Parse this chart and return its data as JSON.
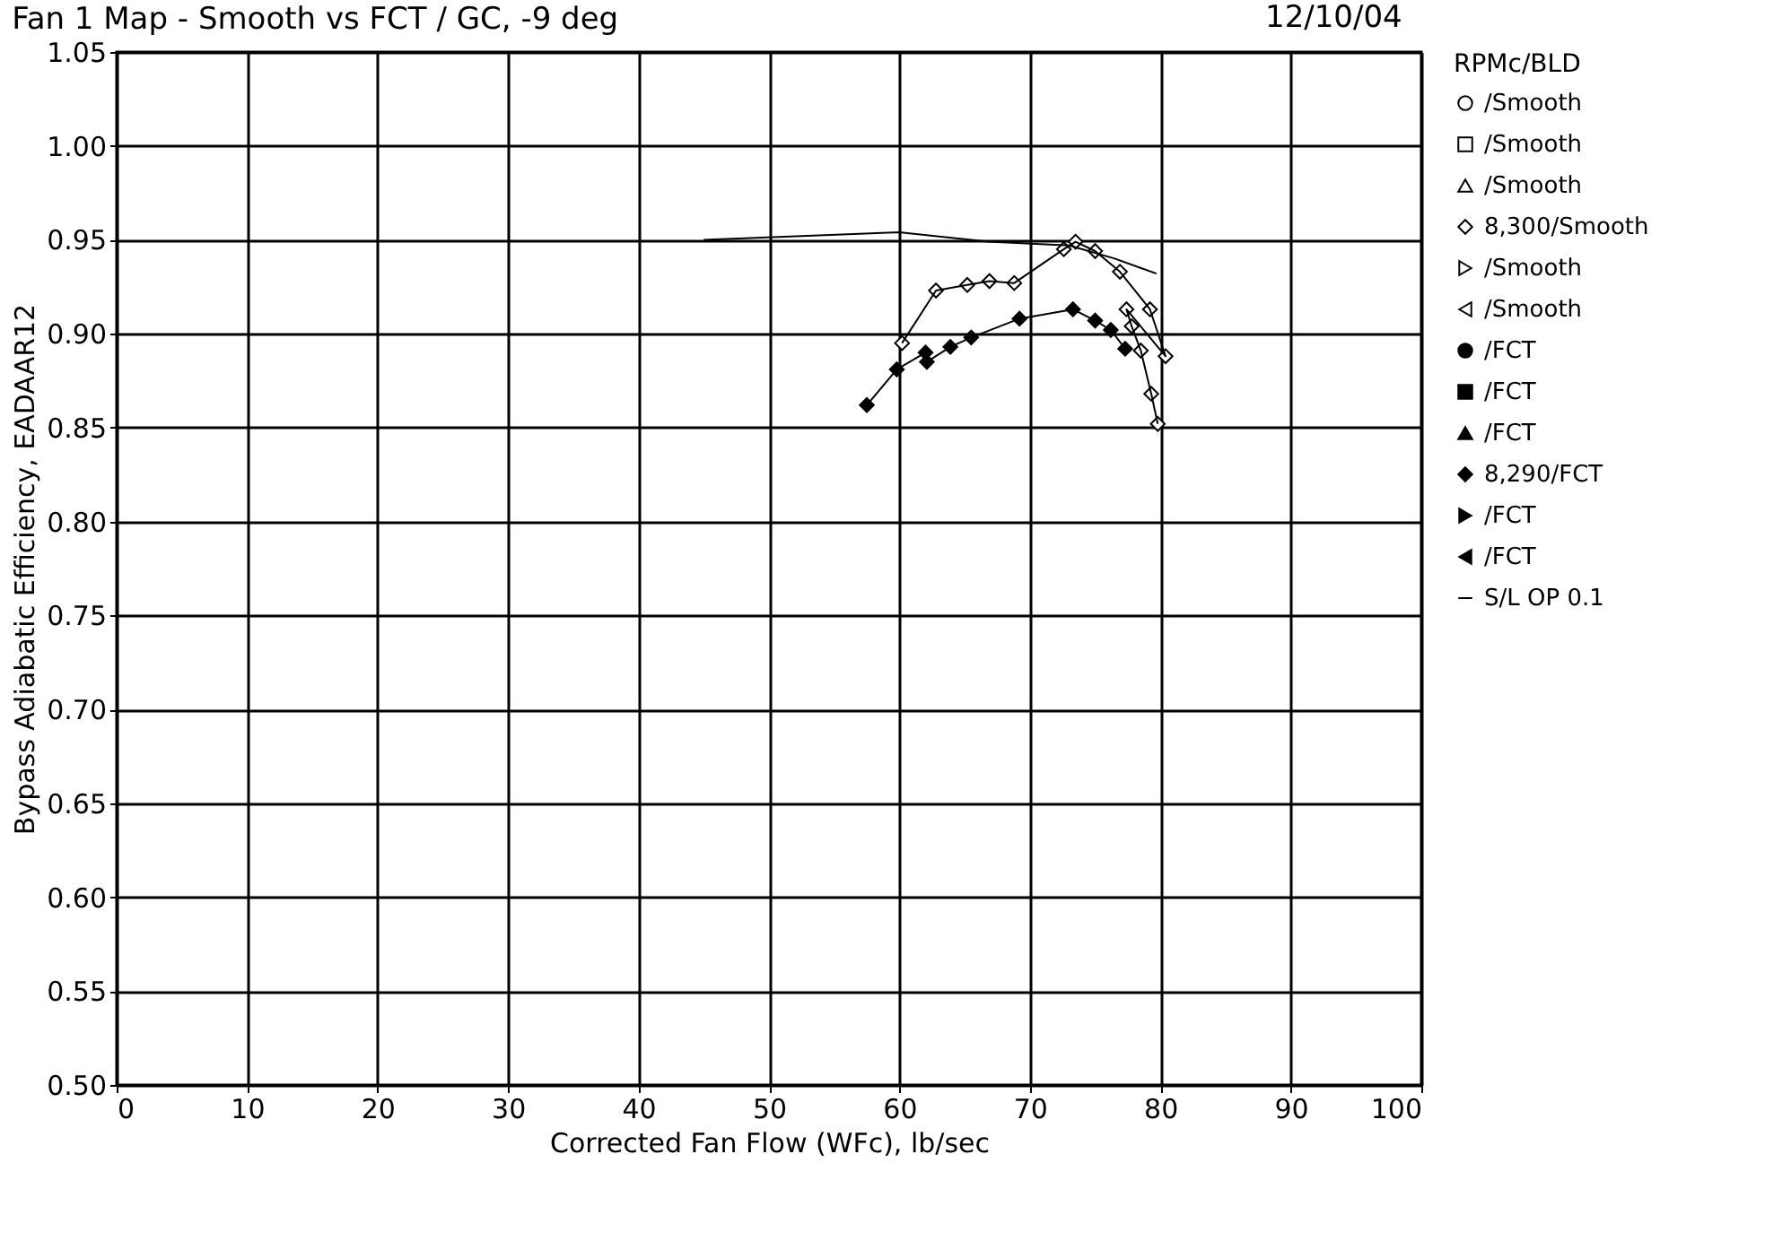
{
  "chart_data": {
    "type": "line",
    "title": "Fan 1 Map - Smooth vs FCT / GC, -9 deg",
    "annotations": [
      "12/10/04"
    ],
    "xlabel": "Corrected Fan Flow (WFc),  lb/sec",
    "ylabel": "Bypass Adiabatic Efficiency, EADAAR12",
    "legend_title": "RPMc/BLD",
    "legend": "top right",
    "grid": true,
    "xlim": [
      0,
      100
    ],
    "xticks": [
      0,
      10,
      20,
      30,
      40,
      50,
      60,
      70,
      80,
      90,
      100
    ],
    "ylim": [
      0.5,
      1.05
    ],
    "yticks": [
      {
        "value": 0.5,
        "label": "0.50"
      },
      0.55,
      {
        "value": 0.6,
        "label": "0.60"
      },
      0.65,
      {
        "value": 0.7,
        "label": "0.70"
      },
      0.75,
      {
        "value": 0.8,
        "label": "0.80"
      },
      0.85,
      {
        "value": 0.9,
        "label": "0.90"
      },
      0.95,
      {
        "value": 1.0,
        "label": "1.00"
      },
      1.05
    ],
    "series": [
      {
        "name": "/Smooth",
        "color": "#000000",
        "marker": "circle-open"
      },
      {
        "name": "/Smooth",
        "color": "#000000",
        "marker": "square-open"
      },
      {
        "name": "/Smooth",
        "color": "#000000",
        "marker": "triangle-open"
      },
      {
        "name": "8,300/Smooth",
        "color": "#000000",
        "marker": "diamond-open",
        "x": [
          60.2,
          62.8,
          65.2,
          66.9,
          68.8,
          72.6,
          73.5,
          75.0,
          76.9,
          79.2,
          80.4,
          77.4,
          77.8,
          78.5,
          79.3,
          79.8
        ],
        "values": [
          0.895,
          0.923,
          0.926,
          0.928,
          0.927,
          0.945,
          0.949,
          0.944,
          0.933,
          0.913,
          0.888,
          0.913,
          0.904,
          0.891,
          0.868,
          0.852
        ]
      },
      {
        "name": "/Smooth",
        "color": "#000000",
        "marker": "triangle-right-open"
      },
      {
        "name": "/Smooth",
        "color": "#000000",
        "marker": "triangle-left-open"
      },
      {
        "name": "/FCT",
        "color": "#000000",
        "marker": "circle"
      },
      {
        "name": "/FCT",
        "color": "#000000",
        "marker": "square"
      },
      {
        "name": "/FCT",
        "color": "#000000",
        "marker": "triangle"
      },
      {
        "name": "8,290/FCT",
        "color": "#000000",
        "marker": "diamond",
        "x": [
          57.5,
          59.8,
          62.0,
          62.1,
          63.9,
          65.5,
          69.2,
          73.3,
          75.0,
          76.2,
          77.3
        ],
        "values": [
          0.862,
          0.881,
          0.89,
          0.885,
          0.893,
          0.898,
          0.908,
          0.913,
          0.907,
          0.902,
          0.892
        ]
      },
      {
        "name": "/FCT",
        "color": "#000000",
        "marker": "triangle-right"
      },
      {
        "name": "/FCT",
        "color": "#000000",
        "marker": "triangle-left"
      },
      {
        "name": "S/L OP 0.1",
        "color": "#000000",
        "marker": "none",
        "x": [
          45,
          60,
          66.8,
          73,
          76.5,
          79.7
        ],
        "values": [
          0.95,
          0.954,
          0.949,
          0.947,
          0.94,
          0.932
        ]
      }
    ]
  }
}
